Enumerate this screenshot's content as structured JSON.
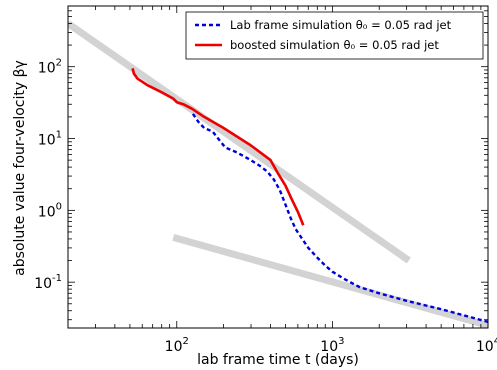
{
  "chart_data": {
    "type": "line",
    "xlabel": "lab frame time t (days)",
    "ylabel": "absolute value four-velocity βγ",
    "xscale": "log",
    "yscale": "log",
    "xlim": [
      20,
      10000
    ],
    "ylim": [
      0.023,
      700
    ],
    "grid": false,
    "legend_position": "top-right",
    "x_ticks": [
      {
        "value": 100,
        "base": "10",
        "exp": "2"
      },
      {
        "value": 1000,
        "base": "10",
        "exp": "3"
      },
      {
        "value": 10000,
        "base": "10",
        "exp": "4"
      }
    ],
    "y_ticks": [
      {
        "value": 0.1,
        "base": "10",
        "exp": "-1"
      },
      {
        "value": 1,
        "base": "10",
        "exp": "0"
      },
      {
        "value": 10,
        "base": "10",
        "exp": "1"
      },
      {
        "value": 100,
        "base": "10",
        "exp": "2"
      }
    ],
    "series": [
      {
        "name": "Lab frame simulation θ0 = 0.05 rad jet",
        "legend_label": "Lab frame simulation θ₀ = 0.05 rad jet",
        "style": "dashed",
        "color": "#0000dd",
        "x": [
          127,
          138,
          150,
          170,
          188,
          205,
          240,
          290,
          340,
          380,
          420,
          460,
          500,
          540,
          580,
          640,
          700,
          800,
          900,
          1000,
          1200,
          1500,
          2000,
          3000,
          5000,
          10000
        ],
        "y": [
          22,
          17,
          14,
          12.5,
          9.5,
          7.5,
          6.5,
          5.2,
          4.2,
          3.5,
          2.7,
          1.9,
          1.2,
          0.78,
          0.55,
          0.4,
          0.3,
          0.22,
          0.17,
          0.14,
          0.11,
          0.085,
          0.07,
          0.055,
          0.042,
          0.028
        ]
      },
      {
        "name": "boosted simulation θ0 = 0.05 rad jet",
        "legend_label": "boosted simulation θ₀ = 0.05 rad jet",
        "style": "solid",
        "color": "#ee0000",
        "x": [
          52,
          53,
          56,
          65,
          80,
          95,
          100,
          110,
          125,
          150,
          200,
          300,
          400,
          450,
          500,
          550,
          600,
          650
        ],
        "y": [
          95,
          80,
          68,
          55,
          44,
          36,
          32,
          30,
          26,
          20,
          14,
          8,
          5,
          3.2,
          2.2,
          1.4,
          0.95,
          0.62
        ]
      }
    ],
    "reference_lines": [
      {
        "x": [
          20,
          3100
        ],
        "y": [
          400,
          0.2
        ],
        "color": "#d3d3d3"
      },
      {
        "x": [
          95,
          10000
        ],
        "y": [
          0.42,
          0.025
        ],
        "color": "#d3d3d3"
      }
    ]
  }
}
